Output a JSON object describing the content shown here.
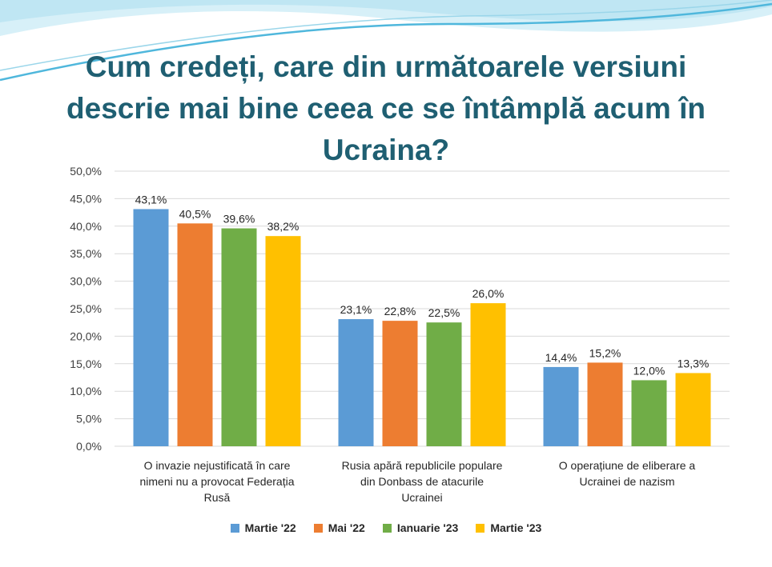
{
  "page": {
    "title": "Cum credeți, care din următoarele versiuni descrie mai bine ceea ce se întâmplă acum în Ucraina?"
  },
  "colors": {
    "banner_light": "#d7f0f8",
    "banner_mid": "#9bd6ea",
    "banner_accent": "#4fb7dc",
    "title": "#1f5f72",
    "grid": "#d9d9d9"
  },
  "chart_data": {
    "type": "bar",
    "title": "Cum credeți, care din următoarele versiuni descrie mai bine ceea ce se întâmplă acum în Ucraina?",
    "categories": [
      [
        "O invazie nejustificată în care",
        "nimeni nu a provocat Federația",
        "Rusă"
      ],
      [
        "Rusia apără republicile populare",
        "din Donbass de atacurile",
        "Ucrainei"
      ],
      [
        "O operațiune de eliberare a",
        "Ucrainei de nazism"
      ]
    ],
    "series": [
      {
        "name": "Martie '22",
        "color": "#5b9bd5",
        "values": [
          43.1,
          23.1,
          14.4
        ],
        "labels": [
          "43,1%",
          "23,1%",
          "14,4%"
        ]
      },
      {
        "name": "Mai '22",
        "color": "#ed7d31",
        "values": [
          40.5,
          22.8,
          15.2
        ],
        "labels": [
          "40,5%",
          "22,8%",
          "15,2%"
        ]
      },
      {
        "name": "Ianuarie '23",
        "color": "#70ad47",
        "values": [
          39.6,
          22.5,
          12.0
        ],
        "labels": [
          "39,6%",
          "22,5%",
          "12,0%"
        ]
      },
      {
        "name": "Martie '23",
        "color": "#ffc000",
        "values": [
          38.2,
          26.0,
          13.3
        ],
        "labels": [
          "38,2%",
          "26,0%",
          "13,3%"
        ]
      }
    ],
    "ylim": [
      0,
      50
    ],
    "yticks": [
      "0,0%",
      "5,0%",
      "10,0%",
      "15,0%",
      "20,0%",
      "25,0%",
      "30,0%",
      "35,0%",
      "40,0%",
      "45,0%",
      "50,0%"
    ],
    "grid": true,
    "legend_position": "bottom"
  }
}
